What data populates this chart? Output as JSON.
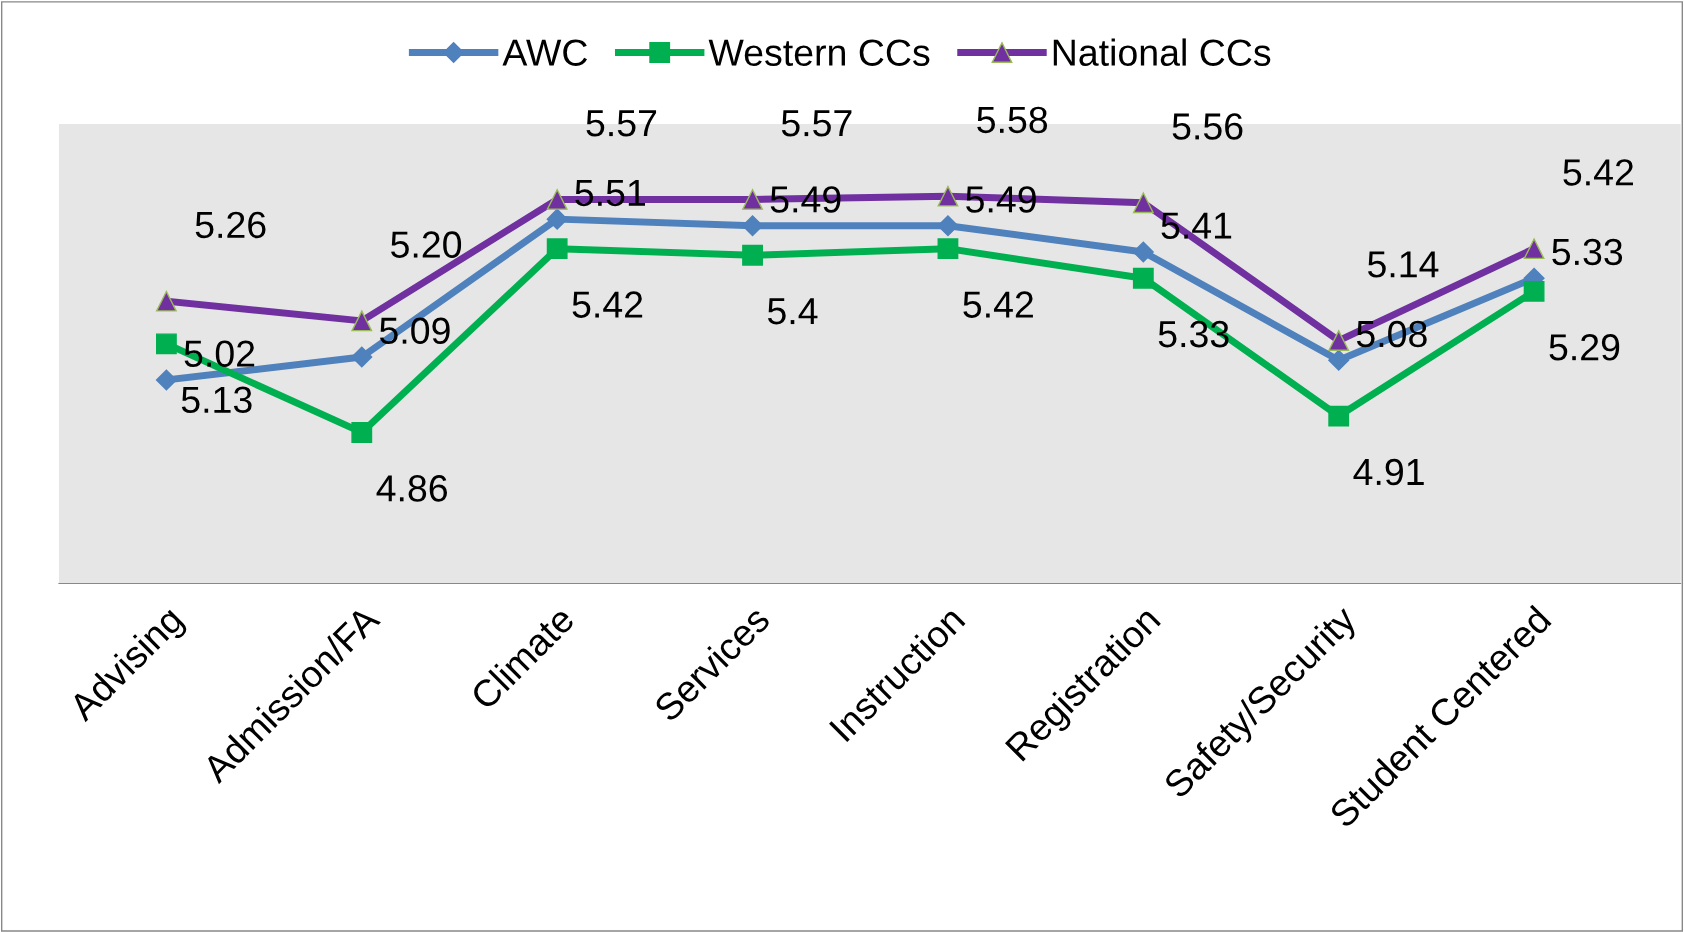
{
  "chart_data": {
    "type": "line",
    "categories": [
      "Advising",
      "Admission/FA",
      "Climate",
      "Services",
      "Instruction",
      "Registration",
      "Safety/Security",
      "Student Centered"
    ],
    "ylim": [
      4.4,
      5.8
    ],
    "series": [
      {
        "name": "AWC",
        "color": "#4f81bd",
        "marker": "diamond",
        "values": [
          5.02,
          5.09,
          5.51,
          5.49,
          5.49,
          5.41,
          5.08,
          5.33
        ],
        "value_labels": [
          "5.02",
          "5.09",
          "5.51",
          "5.49",
          "5.49",
          "5.41",
          "5.08",
          "5.33"
        ]
      },
      {
        "name": "Western CCs",
        "color": "#00b050",
        "marker": "square",
        "values": [
          5.13,
          4.86,
          5.42,
          5.4,
          5.42,
          5.33,
          4.91,
          5.29
        ],
        "value_labels": [
          "5.13",
          "4.86",
          "5.42",
          "5.4",
          "5.42",
          "5.33",
          "4.91",
          "5.29"
        ]
      },
      {
        "name": "National CCs",
        "color": "#7030a0",
        "marker": "triangle",
        "values": [
          5.26,
          5.2,
          5.57,
          5.57,
          5.58,
          5.56,
          5.14,
          5.42
        ],
        "value_labels": [
          "5.26",
          "5.20",
          "5.57",
          "5.57",
          "5.58",
          "5.56",
          "5.14",
          "5.42"
        ]
      }
    ],
    "grid": false,
    "legend": "top"
  }
}
